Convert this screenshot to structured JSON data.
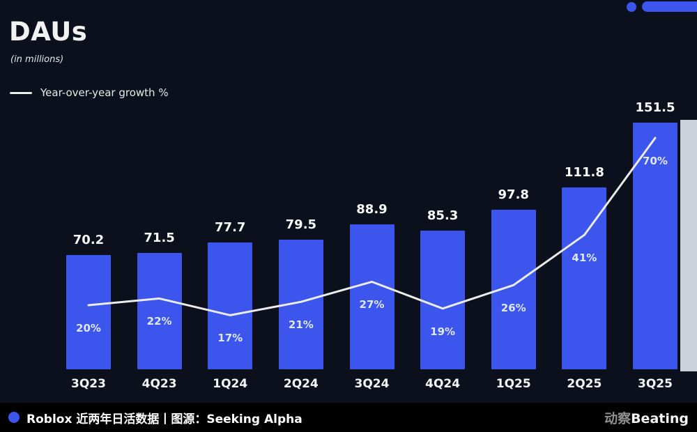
{
  "page": {
    "background": "#0b101c",
    "accent": "#3c55ec"
  },
  "header": {
    "title": "DAUs",
    "subtitle": "(in millions)",
    "legend_label": "Year-over-year growth %"
  },
  "chart_data": {
    "type": "bar",
    "title": "DAUs",
    "subtitle": "(in millions)",
    "categories": [
      "3Q23",
      "4Q23",
      "1Q24",
      "2Q24",
      "3Q24",
      "4Q24",
      "1Q25",
      "2Q25",
      "3Q25"
    ],
    "series": [
      {
        "name": "DAUs (millions)",
        "type": "bar",
        "values": [
          70.2,
          71.5,
          77.7,
          79.5,
          88.9,
          85.3,
          97.8,
          111.8,
          151.5
        ]
      },
      {
        "name": "Year-over-year growth %",
        "type": "line",
        "values": [
          20,
          22,
          17,
          21,
          27,
          19,
          26,
          41,
          70
        ]
      }
    ],
    "bar_color": "#3c55ec",
    "line_color": "#ececec",
    "ylim": [
      0,
      160
    ],
    "grid": false,
    "legend_position": "top-left"
  },
  "footer": {
    "caption": "Roblox 近两年日活数据丨图源：Seeking Alpha",
    "brand_gray": "动察",
    "brand_white": "Beating"
  }
}
